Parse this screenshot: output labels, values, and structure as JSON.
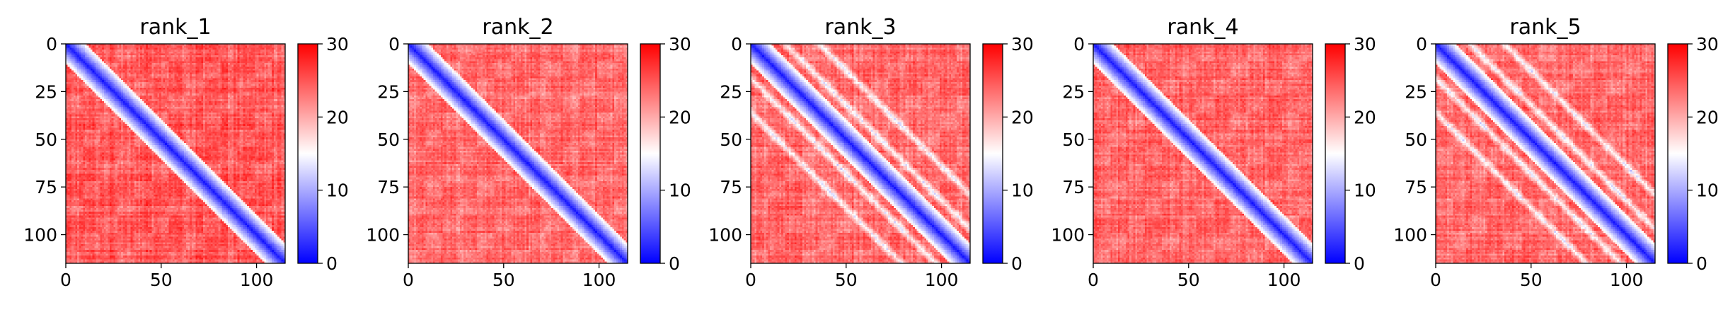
{
  "chart_data": [
    {
      "type": "heatmap",
      "title": "rank_1",
      "matrix_size": 115,
      "x_ticks": [
        0,
        50,
        100
      ],
      "y_ticks": [
        0,
        25,
        50,
        75,
        100
      ],
      "xlim": [
        0,
        115
      ],
      "ylim": [
        115,
        0
      ],
      "colorbar": {
        "min": 0,
        "max": 30,
        "ticks": [
          0,
          10,
          20,
          30
        ],
        "colormap": "bwr"
      },
      "pattern": {
        "diagonal_band_width": 11,
        "off_diagonal_level": 25,
        "secondary_bands": []
      }
    },
    {
      "type": "heatmap",
      "title": "rank_2",
      "matrix_size": 115,
      "x_ticks": [
        0,
        50,
        100
      ],
      "y_ticks": [
        0,
        25,
        50,
        75,
        100
      ],
      "xlim": [
        0,
        115
      ],
      "ylim": [
        115,
        0
      ],
      "colorbar": {
        "min": 0,
        "max": 30,
        "ticks": [
          0,
          10,
          20,
          30
        ],
        "colormap": "bwr"
      },
      "pattern": {
        "diagonal_band_width": 11,
        "off_diagonal_level": 24,
        "secondary_bands": []
      }
    },
    {
      "type": "heatmap",
      "title": "rank_3",
      "matrix_size": 115,
      "x_ticks": [
        0,
        50,
        100
      ],
      "y_ticks": [
        0,
        25,
        50,
        75,
        100
      ],
      "xlim": [
        0,
        115
      ],
      "ylim": [
        115,
        0
      ],
      "colorbar": {
        "min": 0,
        "max": 30,
        "ticks": [
          0,
          10,
          20,
          30
        ],
        "colormap": "bwr"
      },
      "pattern": {
        "diagonal_band_width": 11,
        "off_diagonal_level": 24,
        "secondary_bands": [
          18,
          36
        ]
      }
    },
    {
      "type": "heatmap",
      "title": "rank_4",
      "matrix_size": 115,
      "x_ticks": [
        0,
        50,
        100
      ],
      "y_ticks": [
        0,
        25,
        50,
        75,
        100
      ],
      "xlim": [
        0,
        115
      ],
      "ylim": [
        115,
        0
      ],
      "colorbar": {
        "min": 0,
        "max": 30,
        "ticks": [
          0,
          10,
          20,
          30
        ],
        "colormap": "bwr"
      },
      "pattern": {
        "diagonal_band_width": 11,
        "off_diagonal_level": 24,
        "secondary_bands": []
      }
    },
    {
      "type": "heatmap",
      "title": "rank_5",
      "matrix_size": 115,
      "x_ticks": [
        0,
        50,
        100
      ],
      "y_ticks": [
        0,
        25,
        50,
        75,
        100
      ],
      "xlim": [
        0,
        115
      ],
      "ylim": [
        115,
        0
      ],
      "colorbar": {
        "min": 0,
        "max": 30,
        "ticks": [
          0,
          10,
          20,
          30
        ],
        "colormap": "bwr"
      },
      "pattern": {
        "diagonal_band_width": 11,
        "off_diagonal_level": 24,
        "secondary_bands": [
          18,
          36
        ]
      }
    }
  ],
  "colors": {
    "low": "#0000ff",
    "mid": "#ffffff",
    "high": "#ff0000"
  }
}
